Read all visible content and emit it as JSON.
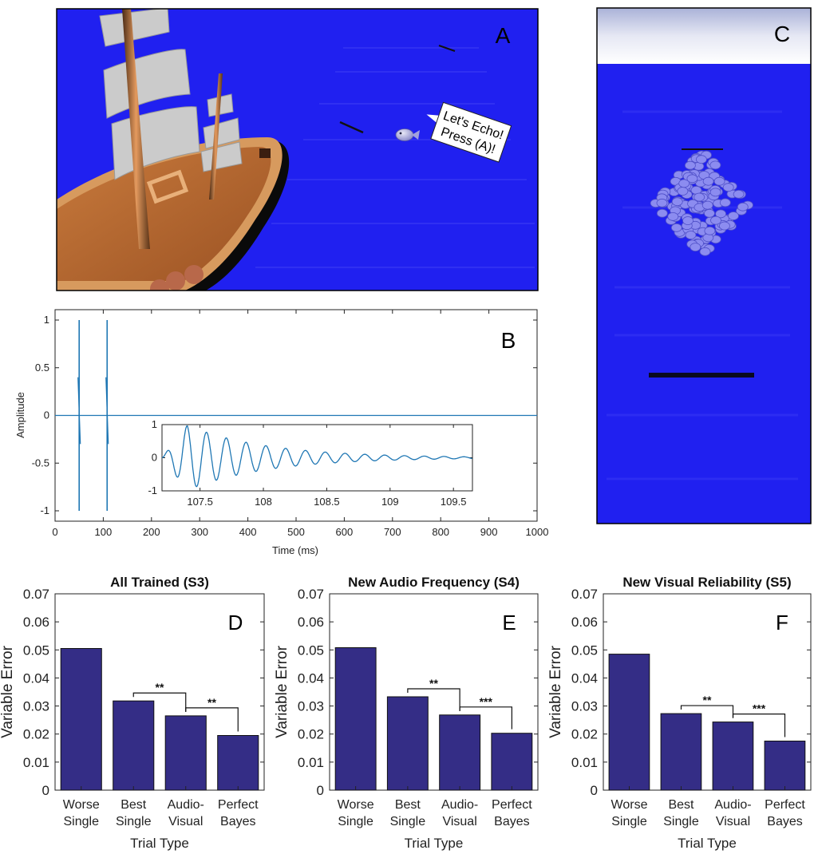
{
  "panels": {
    "A": {
      "letter": "A",
      "speech": [
        "Let's Echo!",
        "Press (A)!"
      ]
    },
    "B": {
      "letter": "B"
    },
    "C": {
      "letter": "C"
    },
    "D": {
      "letter": "D"
    },
    "E": {
      "letter": "E"
    },
    "F": {
      "letter": "F"
    }
  },
  "colors": {
    "sea": "#2020f0",
    "bar": "#342d86",
    "signal": "#1f77b4",
    "hull": "#b8652e",
    "sail": "#c8c8c8"
  },
  "chart_data": [
    {
      "id": "B",
      "type": "line",
      "xlabel": "Time (ms)",
      "ylabel": "Amplitude",
      "xlim": [
        0,
        1000
      ],
      "ylim": [
        -1,
        1
      ],
      "xticks": [
        0,
        100,
        200,
        300,
        400,
        500,
        600,
        700,
        800,
        900,
        1000
      ],
      "yticks": [
        -1,
        -0.5,
        0,
        0.5,
        1
      ],
      "spikes": [
        {
          "x": 50,
          "peak": 1,
          "trough": -1
        },
        {
          "x": 108,
          "peak": 1,
          "trough": -1
        }
      ],
      "inset": {
        "type": "line",
        "xlim": [
          107.2,
          109.65
        ],
        "ylim": [
          -1,
          1
        ],
        "xticks": [
          107.5,
          108,
          108.5,
          109,
          109.5
        ],
        "yticks": [
          -1,
          0,
          1
        ],
        "signal": {
          "start": 107.2,
          "frequency_khz": 6.4,
          "decay_per_ms": 1.6
        }
      }
    },
    {
      "id": "D",
      "type": "bar",
      "title": "All Trained (S3)",
      "xlabel": "Trial Type",
      "ylabel": "Variable Error",
      "ylim": [
        0,
        0.07
      ],
      "yticks": [
        0,
        0.01,
        0.02,
        0.03,
        0.04,
        0.05,
        0.06,
        0.07
      ],
      "categories": [
        [
          "Worse",
          "Single"
        ],
        [
          "Best",
          "Single"
        ],
        [
          "Audio-",
          "Visual"
        ],
        [
          "Perfect",
          "Bayes"
        ]
      ],
      "values": [
        0.0505,
        0.0318,
        0.0265,
        0.0195
      ],
      "significance": [
        {
          "from": 1,
          "to": 2,
          "label": "**"
        },
        {
          "from": 2,
          "to": 3,
          "label": "**"
        }
      ]
    },
    {
      "id": "E",
      "type": "bar",
      "title": "New Audio Frequency (S4)",
      "xlabel": "Trial Type",
      "ylabel": "Variable Error",
      "ylim": [
        0,
        0.07
      ],
      "yticks": [
        0,
        0.01,
        0.02,
        0.03,
        0.04,
        0.05,
        0.06,
        0.07
      ],
      "categories": [
        [
          "Worse",
          "Single"
        ],
        [
          "Best",
          "Single"
        ],
        [
          "Audio-",
          "Visual"
        ],
        [
          "Perfect",
          "Bayes"
        ]
      ],
      "values": [
        0.0508,
        0.0333,
        0.0268,
        0.0203
      ],
      "significance": [
        {
          "from": 1,
          "to": 2,
          "label": "**"
        },
        {
          "from": 2,
          "to": 3,
          "label": "***"
        }
      ]
    },
    {
      "id": "F",
      "type": "bar",
      "title": "New Visual Reliability (S5)",
      "xlabel": "Trial Type",
      "ylabel": "Variable Error",
      "ylim": [
        0,
        0.07
      ],
      "yticks": [
        0,
        0.01,
        0.02,
        0.03,
        0.04,
        0.05,
        0.06,
        0.07
      ],
      "categories": [
        [
          "Worse",
          "Single"
        ],
        [
          "Best",
          "Single"
        ],
        [
          "Audio-",
          "Visual"
        ],
        [
          "Perfect",
          "Bayes"
        ]
      ],
      "values": [
        0.0485,
        0.0273,
        0.0243,
        0.0175
      ],
      "significance": [
        {
          "from": 1,
          "to": 2,
          "label": "**"
        },
        {
          "from": 2,
          "to": 3,
          "label": "***"
        }
      ]
    }
  ]
}
